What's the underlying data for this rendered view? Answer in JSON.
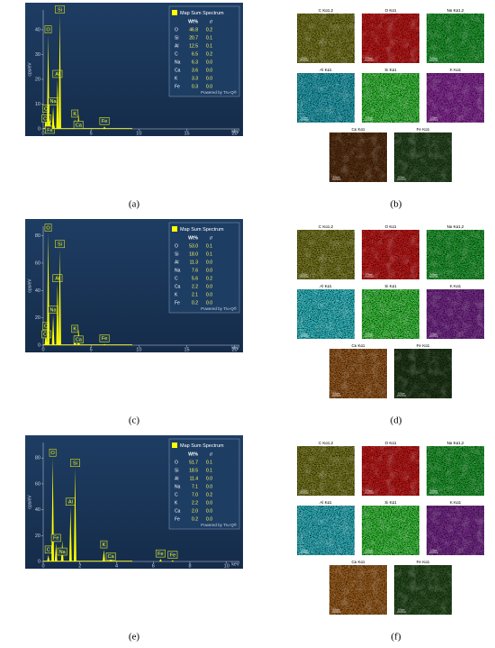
{
  "chart_data": [
    {
      "type": "spectrum",
      "y_label": "cps/eV",
      "x_label": "keV",
      "ylim": [
        0,
        48
      ],
      "yticks": [
        0,
        10,
        20,
        30,
        40
      ],
      "xlim": [
        0,
        20.5
      ],
      "xticks": [
        0,
        5,
        10,
        15,
        20
      ],
      "color": "#ffff00",
      "labels": [
        "C",
        "Ca",
        "O",
        "Fe",
        "Na",
        "Al",
        "Si",
        "K",
        "Ca",
        "Fe"
      ],
      "x": [
        0.28,
        0.34,
        0.52,
        0.7,
        1.04,
        1.49,
        1.74,
        3.31,
        3.69,
        6.4
      ],
      "values": [
        6,
        2,
        38,
        4,
        9,
        20,
        46,
        4,
        6,
        1
      ],
      "legend": {
        "title": "Map Sum Spectrum",
        "columns": [
          "Wt%",
          "σ"
        ],
        "rows": [
          [
            "O",
            "46.8",
            "0.2"
          ],
          [
            "Si",
            "20.7",
            "0.1"
          ],
          [
            "Al",
            "12.5",
            "0.1"
          ],
          [
            "C",
            "6.5",
            "0.2"
          ],
          [
            "Na",
            "6.3",
            "0.0"
          ],
          [
            "Ca",
            "3.6",
            "0.0"
          ],
          [
            "K",
            "3.3",
            "0.0"
          ],
          [
            "Fe",
            "0.3",
            "0.0"
          ]
        ],
        "footer": "Powered by Tru-Q®"
      }
    },
    {
      "type": "spectrum",
      "y_label": "cps/eV",
      "x_label": "keV",
      "ylim": [
        0,
        87
      ],
      "yticks": [
        0,
        20,
        40,
        60,
        80
      ],
      "xlim": [
        0,
        20.5
      ],
      "xticks": [
        0,
        5,
        10,
        15,
        20
      ],
      "color": "#ffff00",
      "labels": [
        "C",
        "Ca",
        "O",
        "Na",
        "Al",
        "Si",
        "K",
        "Ca",
        "Fe"
      ],
      "x": [
        0.28,
        0.34,
        0.52,
        1.04,
        1.49,
        1.74,
        3.31,
        3.69,
        6.4
      ],
      "values": [
        10,
        4,
        82,
        22,
        45,
        70,
        8,
        12,
        1
      ],
      "legend": {
        "title": "Map Sum Spectrum",
        "columns": [
          "Wt%",
          "σ"
        ],
        "rows": [
          [
            "O",
            "53.0",
            "0.1"
          ],
          [
            "Si",
            "18.0",
            "0.1"
          ],
          [
            "Al",
            "11.3",
            "0.0"
          ],
          [
            "Na",
            "7.6",
            "0.0"
          ],
          [
            "C",
            "5.6",
            "0.2"
          ],
          [
            "Ca",
            "2.2",
            "0.0"
          ],
          [
            "K",
            "2.1",
            "0.0"
          ],
          [
            "Fe",
            "0.2",
            "0.0"
          ]
        ],
        "footer": "Powered by Tru-Q®"
      }
    },
    {
      "type": "spectrum",
      "y_label": "cps/eV",
      "x_label": "keV",
      "ylim": [
        0,
        92
      ],
      "yticks": [
        0,
        20,
        40,
        60,
        80
      ],
      "xlim": [
        0,
        10.7
      ],
      "xticks": [
        0,
        2,
        4,
        6,
        8,
        10
      ],
      "color": "#ffff00",
      "labels": [
        "C",
        "O",
        "Fe",
        "Na",
        "Al",
        "Si",
        "K",
        "Ca",
        "Fe",
        "Fe"
      ],
      "x": [
        0.28,
        0.52,
        0.7,
        1.04,
        1.49,
        1.74,
        3.31,
        3.69,
        6.4,
        7.06
      ],
      "values": [
        5,
        80,
        14,
        16,
        42,
        72,
        9,
        6,
        2,
        1
      ],
      "legend": {
        "title": "Map Sum Spectrum",
        "columns": [
          "Wt%",
          "σ"
        ],
        "rows": [
          [
            "O",
            "51.7",
            "0.1"
          ],
          [
            "Si",
            "18.5",
            "0.1"
          ],
          [
            "Al",
            "11.4",
            "0.0"
          ],
          [
            "Na",
            "7.1",
            "0.0"
          ],
          [
            "C",
            "7.0",
            "0.2"
          ],
          [
            "K",
            "2.2",
            "0.0"
          ],
          [
            "Ca",
            "2.0",
            "0.0"
          ],
          [
            "Fe",
            "0.2",
            "0.0"
          ]
        ],
        "footer": "Powered by Tru-Q®"
      }
    }
  ],
  "maps": [
    {
      "labels": [
        "C Kα1,2",
        "O Kα1",
        "Na Kα1,2",
        "Al Kα1",
        "Si Kα1",
        "K Kα1",
        "Ca Kα1",
        "Fe Kα1"
      ],
      "colors": [
        "#7a7a20",
        "#c81818",
        "#22a030",
        "#25a8b8",
        "#3cc83c",
        "#8c2c9c",
        "#5a3010",
        "#284a20"
      ],
      "scale_label": "100µm"
    },
    {
      "labels": [
        "C Kα1,2",
        "O Kα1",
        "Na Kα1,2",
        "Al Kα1",
        "Si Kα1",
        "K Kα1",
        "Ca Kα1",
        "Fe Kα1"
      ],
      "colors": [
        "#7a7a20",
        "#c81818",
        "#22a030",
        "#30c0c8",
        "#3cc83c",
        "#7a2a90",
        "#9a5a1e",
        "#203a18"
      ],
      "scale_label": "100µm"
    },
    {
      "labels": [
        "C Kα1,2",
        "O Kα1",
        "Na Kα1,2",
        "Al Kα1",
        "Si Kα1",
        "K Kα1",
        "Ca Kα1",
        "Fe Kα1"
      ],
      "colors": [
        "#7a7a20",
        "#c81818",
        "#22a030",
        "#30b8c4",
        "#3cc83c",
        "#7a2a90",
        "#a0601e",
        "#28501e"
      ],
      "scale_label": "100µm"
    }
  ],
  "captions": [
    "(a)",
    "(b)",
    "(c)",
    "(d)",
    "(e)",
    "(f)"
  ]
}
